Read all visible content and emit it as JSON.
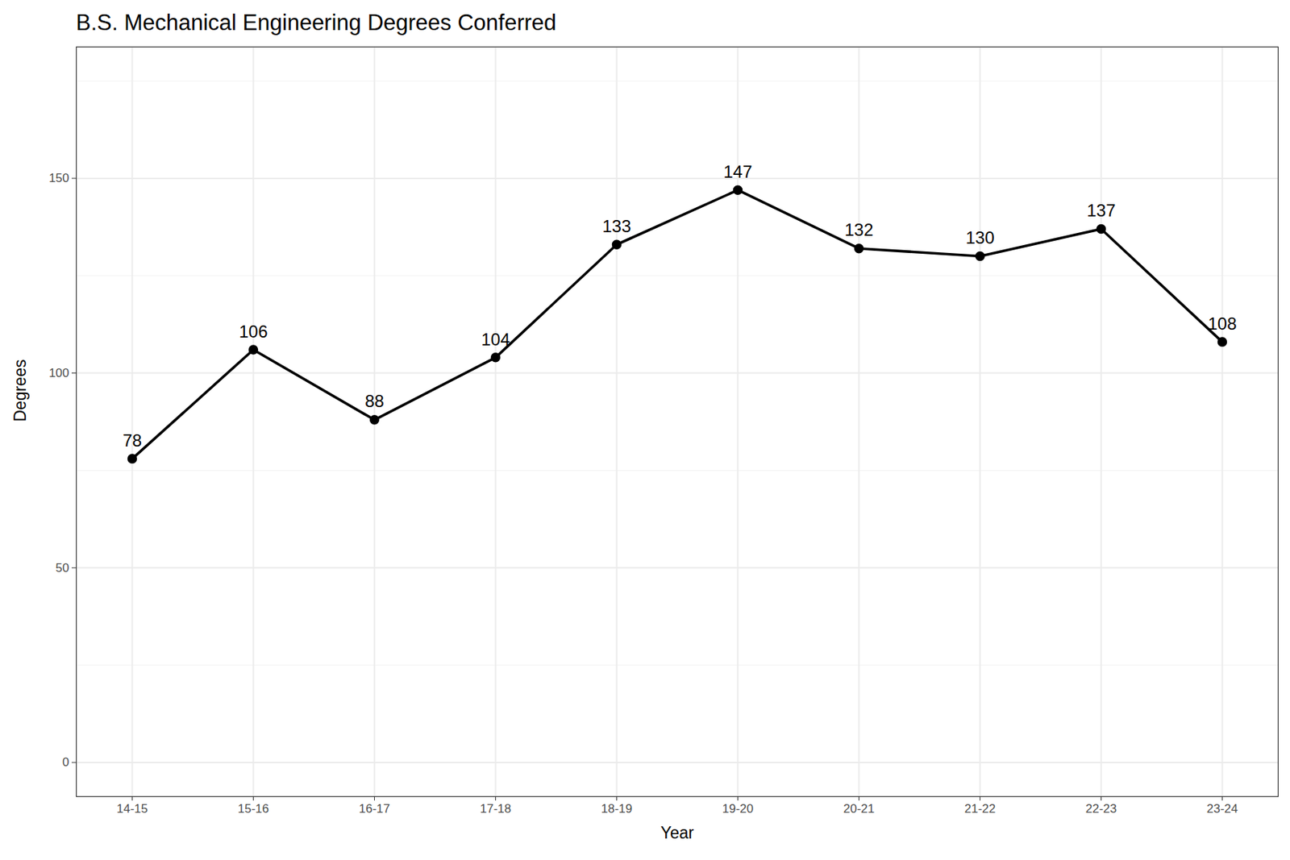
{
  "chart_data": {
    "type": "line",
    "title": "B.S. Mechanical Engineering Degrees Conferred",
    "x_label": "Year",
    "y_label": "Degrees",
    "categories": [
      "14-15",
      "15-16",
      "16-17",
      "17-18",
      "18-19",
      "19-20",
      "20-21",
      "21-22",
      "22-23",
      "23-24"
    ],
    "values": [
      78,
      106,
      88,
      104,
      133,
      147,
      132,
      130,
      137,
      108
    ],
    "color": "#000000",
    "marker": "circle",
    "line_style": "solid",
    "ylim": [
      -8.75,
      183.75
    ],
    "yticks": [
      0,
      50,
      100,
      150
    ],
    "grid": true,
    "data_labels": true
  }
}
